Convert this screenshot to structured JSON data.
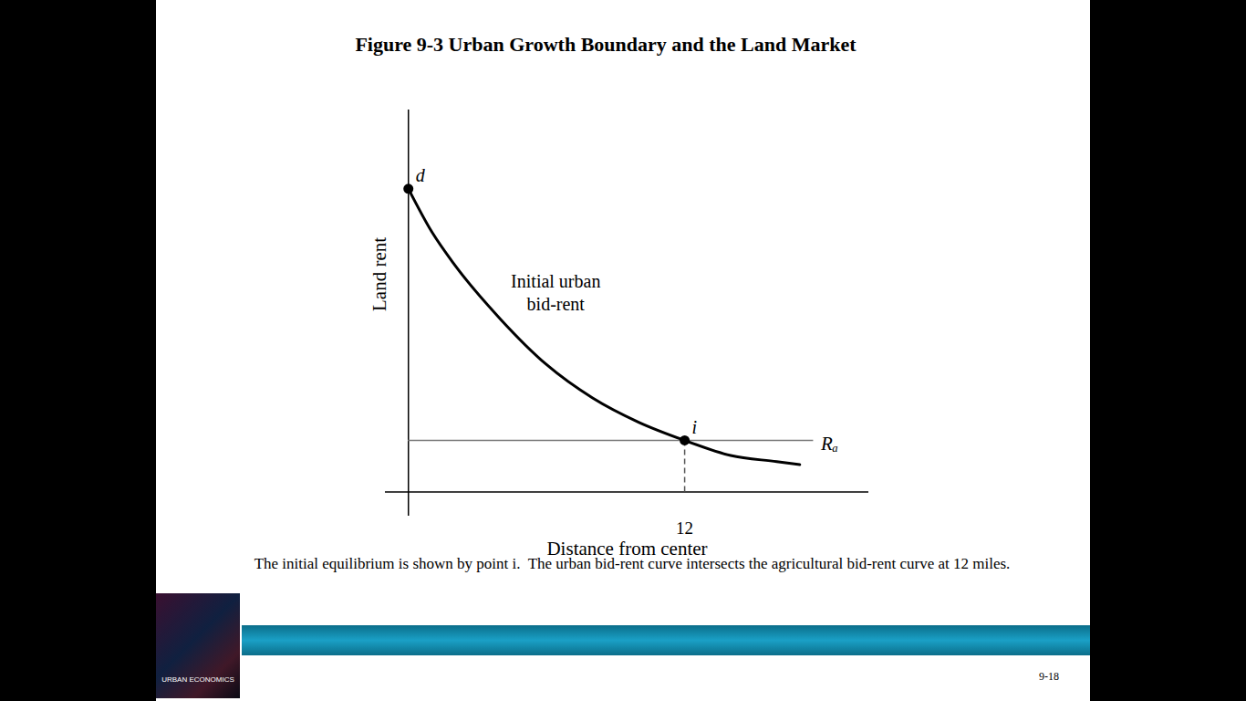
{
  "chart_data": {
    "type": "line",
    "title": "Figure 9-3 Urban Growth Boundary and the Land Market",
    "caption": "The initial equilibrium is shown by point i.  The urban bid-rent curve intersects the agricultural bid-rent curve at 12 miles.",
    "x_label": "Distance from center",
    "y_label": "Land rent",
    "x": [
      0,
      1,
      2,
      4,
      6,
      8,
      10,
      12,
      14,
      16,
      17
    ],
    "series": [
      {
        "name": "Initial urban bid-rent",
        "color": "#000000",
        "values": [
          100,
          86,
          75,
          57,
          42,
          31,
          23,
          17,
          12,
          10,
          9
        ],
        "label_x": 6.4,
        "label_y": 66
      }
    ],
    "xlim": [
      -1,
      20
    ],
    "xticks": [
      12
    ],
    "ylim": [
      -8,
      126
    ],
    "tick_labels": "x",
    "reference_line": {
      "label": "Rₐ",
      "value": 17,
      "x_range": [
        0,
        17.6
      ],
      "color": "#777777",
      "line_style": "solid"
    },
    "drop_line": {
      "x": 12,
      "y_range": [
        0,
        17
      ],
      "line_style": "dashed"
    },
    "points": [
      {
        "label": "d",
        "x": 0,
        "y": 100
      },
      {
        "label": "i",
        "x": 12,
        "y": 17
      }
    ]
  },
  "slide": {
    "page_number": "9-18",
    "cover_text": "URBAN ECONOMICS"
  }
}
